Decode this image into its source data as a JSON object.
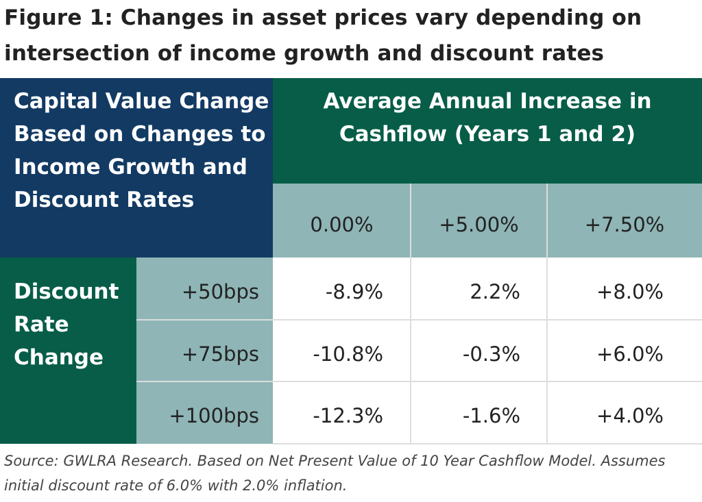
{
  "title": "Figure 1: Changes in asset prices vary depending on intersection of income growth and discount rates",
  "table": {
    "corner_label": "Capital Value Change  Based on Changes to Income Growth and Discount Rates",
    "column_group_label": "Average Annual Increase in Cashflow (Years 1 and 2)",
    "row_group_label": "Discount Rate Change",
    "columns": [
      "0.00%",
      "+5.00%",
      "+7.50%"
    ],
    "rows": [
      {
        "label": "+50bps",
        "values": [
          "-8.9%",
          "2.2%",
          "+8.0%"
        ]
      },
      {
        "label": "+75bps",
        "values": [
          "-10.8%",
          "-0.3%",
          "+6.0%"
        ]
      },
      {
        "label": "+100bps",
        "values": [
          "-12.3%",
          "-1.6%",
          "+4.0%"
        ]
      }
    ]
  },
  "source": "Source: GWLRA Research. Based on Net Present Value of 10 Year Cashflow Model. Assumes initial discount rate of 6.0% with 2.0% inflation.",
  "colors": {
    "navy": "#123a63",
    "green": "#075d48",
    "teal": "#8fb5b6"
  }
}
